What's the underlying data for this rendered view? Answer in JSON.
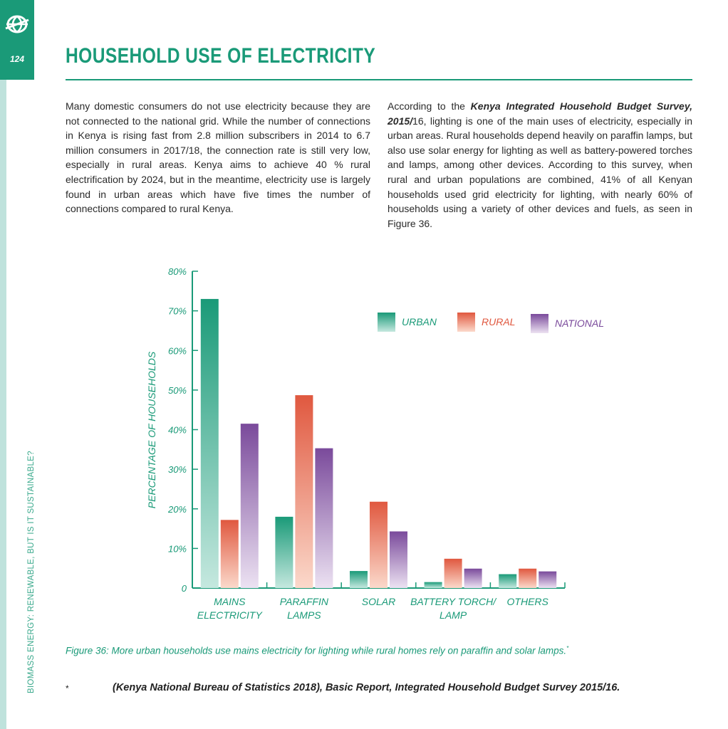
{
  "header": {
    "page_number": "124",
    "title": "HOUSEHOLD USE OF ELECTRICITY",
    "side_title": "BIOMASS ENERGY: RENEWABLE, BUT IS IT SUSTAINABLE?",
    "logo_icon": "globe-icon"
  },
  "body": {
    "left_paragraph": "Many domestic consumers do not use electricity because they are not connected to the national grid.  While the number of connections in Kenya is rising fast from 2.8 million subscribers in 2014 to 6.7 million consumers in 2017/18, the connection rate is still very low, especially in rural areas. Kenya aims to achieve 40 % rural electrification by 2024, but in the meantime, electricity use is largely found in urban areas which have five times the number of connections compared to rural Kenya.",
    "right_intro": "According to the ",
    "right_emph": "Kenya Integrated Household Budget Survey, 2015/",
    "right_rest": "16, lighting is one of the main uses of electricity, especially in urban areas.  Rural households depend heavily on paraffin lamps, but also use solar energy for lighting as well as battery-powered torches and lamps, among other devices.  According to this survey, when rural and urban populations are combined, 41% of all Kenyan households used grid electricity for lighting, with nearly 60% of households using a variety of other devices and fuels, as seen in Figure 36."
  },
  "chart_data": {
    "type": "bar",
    "title": "",
    "xlabel": "",
    "ylabel": "PERCENTAGE OF HOUSEHOLDS",
    "ylim": [
      0,
      80
    ],
    "yticks": [
      0,
      10,
      20,
      30,
      40,
      50,
      60,
      70,
      80
    ],
    "ytick_labels": [
      "0",
      "10%",
      "20%",
      "30%",
      "40%",
      "50%",
      "60%",
      "70%",
      "80%"
    ],
    "categories": [
      [
        "MAINS",
        "ELECTRICITY"
      ],
      [
        "PARAFFIN",
        "LAMPS"
      ],
      [
        "SOLAR"
      ],
      [
        "BATTERY TORCH/",
        "LAMP"
      ],
      [
        "OTHERS"
      ]
    ],
    "series": [
      {
        "name": "URBAN",
        "values": [
          73,
          18,
          4.3,
          1.5,
          3.5
        ],
        "color": "#1a9a78",
        "color_light": "#c5e8df"
      },
      {
        "name": "RURAL",
        "values": [
          17.2,
          48.7,
          21.8,
          7.4,
          4.9
        ],
        "color": "#e0583f",
        "color_light": "#fbd9cb"
      },
      {
        "name": "NATIONAL",
        "values": [
          41.5,
          35.3,
          14.3,
          4.9,
          4.2
        ],
        "color": "#7a4a9b",
        "color_light": "#ece2f2"
      }
    ],
    "grid": false,
    "legend_position": "top-right"
  },
  "figure": {
    "caption": "Figure 36: More urban households use mains electricity for lighting while rural homes rely on paraffin and solar lamps.",
    "caption_mark": "*"
  },
  "footnote": {
    "mark": "*",
    "text": "(Kenya National Bureau of Statistics 2018), Basic Report, Integrated Household Budget Survey 2015/16."
  }
}
